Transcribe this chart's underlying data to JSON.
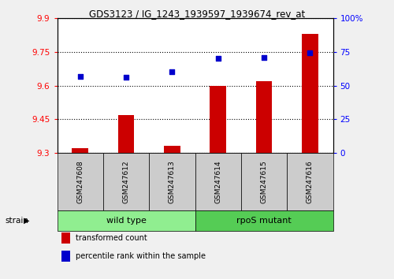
{
  "title": "GDS3123 / IG_1243_1939597_1939674_rev_at",
  "samples": [
    "GSM247608",
    "GSM247612",
    "GSM247613",
    "GSM247614",
    "GSM247615",
    "GSM247616"
  ],
  "transformed_counts": [
    9.32,
    9.47,
    9.33,
    9.6,
    9.62,
    9.83
  ],
  "percentile_ranks": [
    57,
    56,
    60,
    70,
    71,
    74
  ],
  "ylim_left": [
    9.3,
    9.9
  ],
  "ylim_right": [
    0,
    100
  ],
  "yticks_left": [
    9.3,
    9.45,
    9.6,
    9.75,
    9.9
  ],
  "ytick_labels_left": [
    "9.3",
    "9.45",
    "9.6",
    "9.75",
    "9.9"
  ],
  "yticks_right": [
    0,
    25,
    50,
    75,
    100
  ],
  "ytick_labels_right": [
    "0",
    "25",
    "50",
    "75",
    "100%"
  ],
  "bar_color": "#cc0000",
  "dot_color": "#0000cc",
  "group_colors_wt": "#90ee90",
  "group_colors_rpos": "#55cc55",
  "bar_width": 0.35,
  "bg_color": "#f0f0f0",
  "plot_bg": "#ffffff",
  "label_bg": "#cccccc",
  "legend_red": "transformed count",
  "legend_blue": "percentile rank within the sample",
  "strain_label": "strain",
  "wt_label": "wild type",
  "rpos_label": "rpoS mutant",
  "wt_range": [
    0,
    2
  ],
  "rpos_range": [
    3,
    5
  ]
}
